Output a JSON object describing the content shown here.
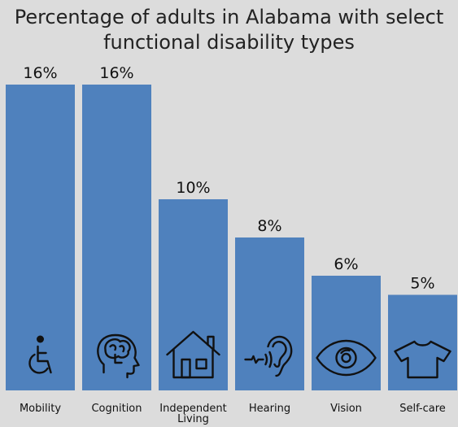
{
  "chart_data": {
    "type": "bar",
    "title_lines": [
      "Percentage of adults in Alabama with select",
      "functional disability types"
    ],
    "categories": [
      "Mobility",
      "Cognition",
      "Independent Living",
      "Hearing",
      "Vision",
      "Self-care"
    ],
    "category_lines": [
      [
        "Mobility"
      ],
      [
        "Cognition"
      ],
      [
        "Independent",
        "Living"
      ],
      [
        "Hearing"
      ],
      [
        "Vision"
      ],
      [
        "Self-care"
      ]
    ],
    "values": [
      16,
      16,
      10,
      8,
      6,
      5
    ],
    "value_labels": [
      "16%",
      "16%",
      "10%",
      "8%",
      "6%",
      "5%"
    ],
    "icons": [
      "wheelchair-icon",
      "brain-icon",
      "house-icon",
      "ear-icon",
      "eye-icon",
      "shirt-icon"
    ],
    "ylim": [
      0,
      16
    ],
    "grid": false,
    "bar_color": "#4f81bd",
    "background": "#dcdcdc"
  }
}
